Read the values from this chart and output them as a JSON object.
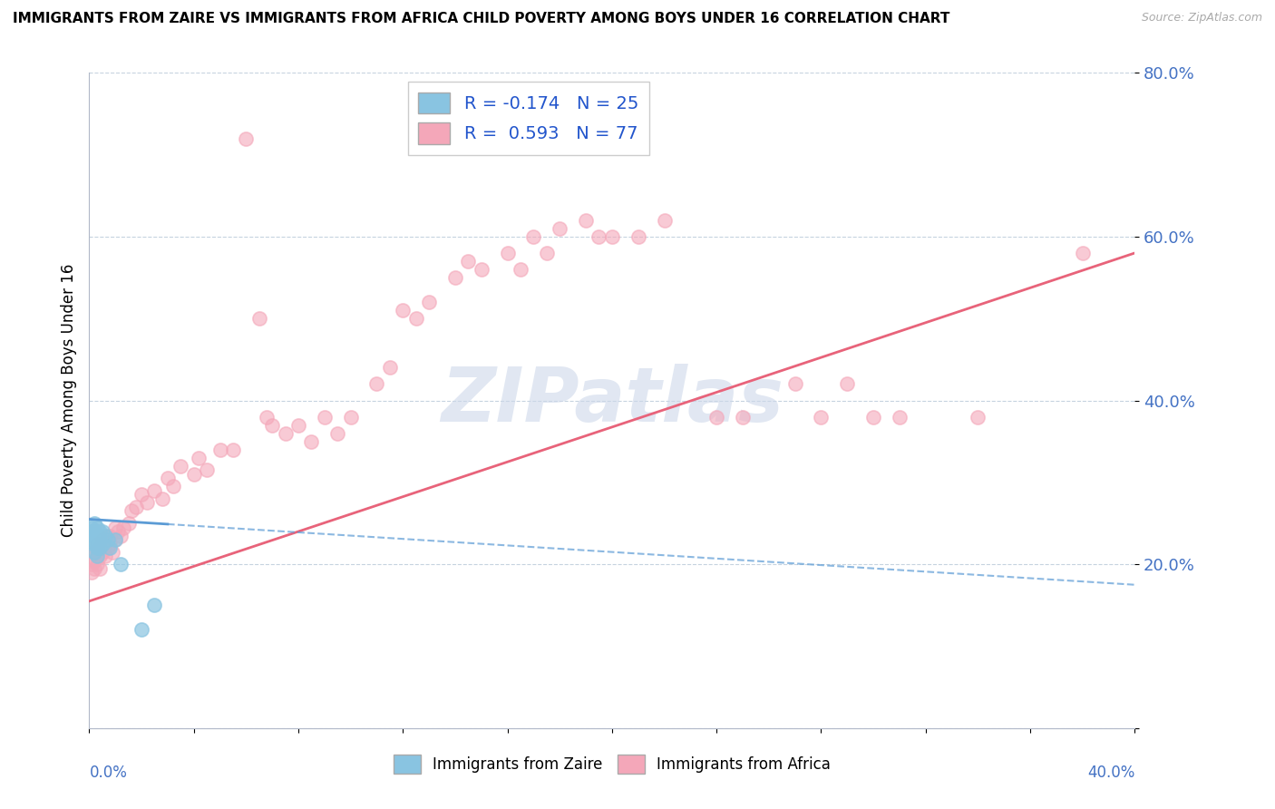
{
  "title": "IMMIGRANTS FROM ZAIRE VS IMMIGRANTS FROM AFRICA CHILD POVERTY AMONG BOYS UNDER 16 CORRELATION CHART",
  "source": "Source: ZipAtlas.com",
  "ylabel": "Child Poverty Among Boys Under 16",
  "xlim": [
    0.0,
    0.4
  ],
  "ylim": [
    0.0,
    0.8
  ],
  "yticks": [
    0.0,
    0.2,
    0.4,
    0.6,
    0.8
  ],
  "ytick_labels": [
    "",
    "20.0%",
    "40.0%",
    "60.0%",
    "80.0%"
  ],
  "color_zaire": "#89c4e1",
  "color_africa": "#f4a7b9",
  "color_zaire_line": "#5b9bd5",
  "color_africa_line": "#e8637a",
  "watermark": "ZIPatlas",
  "watermark_color": "#cdd8ea",
  "R_zaire": -0.174,
  "N_zaire": 25,
  "R_africa": 0.593,
  "N_africa": 77,
  "africa_line_y0": 0.155,
  "africa_line_y1": 0.58,
  "zaire_line_y0": 0.255,
  "zaire_line_y1": 0.175,
  "zaire_x": [
    0.001,
    0.001,
    0.001,
    0.002,
    0.002,
    0.002,
    0.002,
    0.002,
    0.003,
    0.003,
    0.003,
    0.003,
    0.003,
    0.004,
    0.004,
    0.004,
    0.005,
    0.005,
    0.006,
    0.007,
    0.008,
    0.01,
    0.012,
    0.02,
    0.025
  ],
  "zaire_y": [
    0.245,
    0.24,
    0.23,
    0.25,
    0.24,
    0.235,
    0.225,
    0.215,
    0.245,
    0.235,
    0.225,
    0.22,
    0.21,
    0.24,
    0.23,
    0.22,
    0.24,
    0.225,
    0.235,
    0.23,
    0.22,
    0.23,
    0.2,
    0.12,
    0.15
  ],
  "africa_x": [
    0.001,
    0.001,
    0.002,
    0.002,
    0.002,
    0.003,
    0.003,
    0.003,
    0.004,
    0.004,
    0.004,
    0.005,
    0.005,
    0.006,
    0.006,
    0.007,
    0.007,
    0.008,
    0.008,
    0.009,
    0.01,
    0.01,
    0.011,
    0.012,
    0.013,
    0.015,
    0.016,
    0.018,
    0.02,
    0.022,
    0.025,
    0.028,
    0.03,
    0.032,
    0.035,
    0.04,
    0.042,
    0.045,
    0.05,
    0.055,
    0.06,
    0.065,
    0.068,
    0.07,
    0.075,
    0.08,
    0.085,
    0.09,
    0.095,
    0.1,
    0.11,
    0.115,
    0.12,
    0.125,
    0.13,
    0.14,
    0.145,
    0.15,
    0.16,
    0.165,
    0.17,
    0.175,
    0.18,
    0.19,
    0.195,
    0.2,
    0.21,
    0.22,
    0.24,
    0.25,
    0.27,
    0.28,
    0.29,
    0.3,
    0.31,
    0.34,
    0.38
  ],
  "africa_y": [
    0.2,
    0.19,
    0.215,
    0.205,
    0.195,
    0.225,
    0.215,
    0.2,
    0.22,
    0.21,
    0.195,
    0.23,
    0.215,
    0.225,
    0.21,
    0.235,
    0.22,
    0.235,
    0.225,
    0.215,
    0.245,
    0.23,
    0.24,
    0.235,
    0.245,
    0.25,
    0.265,
    0.27,
    0.285,
    0.275,
    0.29,
    0.28,
    0.305,
    0.295,
    0.32,
    0.31,
    0.33,
    0.315,
    0.34,
    0.34,
    0.72,
    0.5,
    0.38,
    0.37,
    0.36,
    0.37,
    0.35,
    0.38,
    0.36,
    0.38,
    0.42,
    0.44,
    0.51,
    0.5,
    0.52,
    0.55,
    0.57,
    0.56,
    0.58,
    0.56,
    0.6,
    0.58,
    0.61,
    0.62,
    0.6,
    0.6,
    0.6,
    0.62,
    0.38,
    0.38,
    0.42,
    0.38,
    0.42,
    0.38,
    0.38,
    0.38,
    0.58
  ]
}
